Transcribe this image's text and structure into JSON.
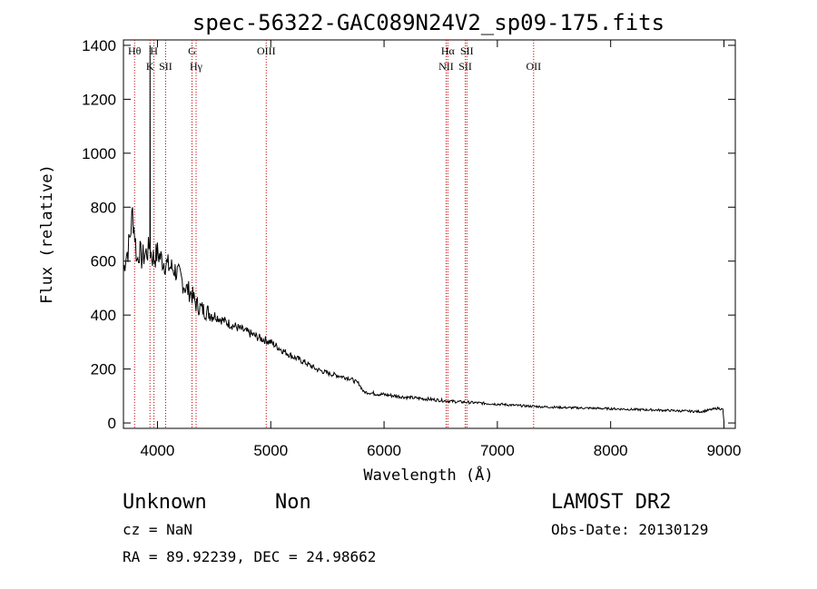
{
  "chart_data": {
    "type": "line",
    "title": "spec-56322-GAC089N24V2_sp09-175.fits",
    "xlabel": "Wavelength (Å)",
    "ylabel": "Flux (relative)",
    "xlim": [
      3700,
      9100
    ],
    "ylim": [
      -20,
      1420
    ],
    "xticks": [
      4000,
      5000,
      6000,
      7000,
      8000,
      9000
    ],
    "yticks": [
      0,
      200,
      400,
      600,
      800,
      1000,
      1200,
      1400
    ],
    "grid": false,
    "series": [
      {
        "name": "",
        "x": [
          3700,
          3720,
          3740,
          3760,
          3780,
          3800,
          3820,
          3840,
          3860,
          3880,
          3900,
          3920,
          3933,
          3935,
          3937,
          3950,
          3970,
          4000,
          4050,
          4100,
          4150,
          4200,
          4250,
          4300,
          4340,
          4400,
          4500,
          4600,
          4700,
          4800,
          4900,
          5000,
          5100,
          5200,
          5300,
          5400,
          5500,
          5600,
          5700,
          5780,
          5820,
          5900,
          6000,
          6200,
          6400,
          6600,
          6800,
          7000,
          7200,
          7400,
          7600,
          7800,
          8000,
          8200,
          8400,
          8600,
          8800,
          8950,
          8990,
          9000
        ],
        "y": [
          560,
          620,
          640,
          700,
          780,
          700,
          600,
          640,
          610,
          620,
          630,
          640,
          660,
          1400,
          640,
          620,
          610,
          630,
          600,
          580,
          570,
          540,
          500,
          480,
          440,
          420,
          400,
          375,
          355,
          335,
          315,
          300,
          270,
          245,
          225,
          200,
          185,
          175,
          165,
          145,
          115,
          110,
          105,
          95,
          88,
          80,
          75,
          70,
          64,
          60,
          57,
          55,
          53,
          50,
          48,
          45,
          42,
          55,
          50,
          5
        ]
      }
    ],
    "emission_lines": [
      {
        "label": "Hθ",
        "x": 3798
      },
      {
        "label": "K",
        "x": 3934
      },
      {
        "label": "H",
        "x": 3969
      },
      {
        "label": "SII",
        "x": 4072
      },
      {
        "label": "G",
        "x": 4305
      },
      {
        "label": "Hγ",
        "x": 4341
      },
      {
        "label": "OIII",
        "x": 4960
      },
      {
        "label": "NII",
        "x": 6548
      },
      {
        "label": "Hα",
        "x": 6563
      },
      {
        "label": "SII",
        "x": 6717
      },
      {
        "label": "SII",
        "x": 6731
      },
      {
        "label": "OII",
        "x": 7320
      }
    ]
  },
  "info": {
    "class_label": "Unknown",
    "subclass_label": "Non",
    "survey_label": "LAMOST DR2",
    "cz_line": "cz = NaN",
    "obs_date_line": "Obs-Date: 20130129",
    "radec_line": "RA =  89.92239, DEC =  24.98662"
  }
}
